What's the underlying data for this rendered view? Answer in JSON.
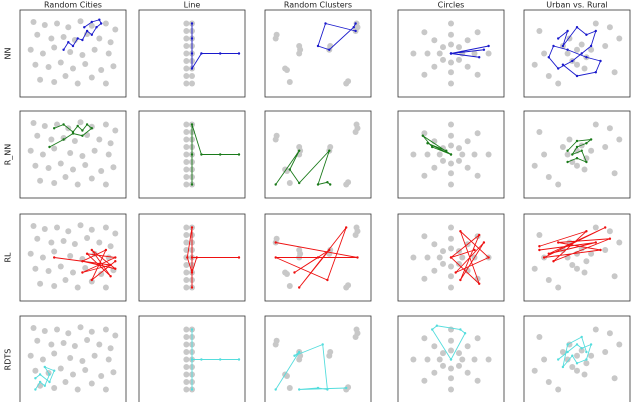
{
  "column_titles": [
    "Random Cities",
    "Line",
    "Random Clusters",
    "Circles",
    "Urban vs. Rural"
  ],
  "rows": [
    {
      "label": "NN",
      "color": "#1a1acc"
    },
    {
      "label": "R_NN",
      "color": "#1a7a1a"
    },
    {
      "label": "RL",
      "color": "#ee1111"
    },
    {
      "label": "RDTS",
      "color": "#55dddd"
    }
  ],
  "xlim": [
    0,
    1
  ],
  "ylim": [
    0,
    1
  ],
  "cities": [
    {
      "x": [
        0.08,
        0.2,
        0.33,
        0.45,
        0.58,
        0.7,
        0.85,
        0.95,
        0.12,
        0.27,
        0.4,
        0.52,
        0.65,
        0.78,
        0.9,
        0.05,
        0.18,
        0.3,
        0.47,
        0.6,
        0.73,
        0.88,
        0.1,
        0.24,
        0.37,
        0.5,
        0.63,
        0.8,
        0.93,
        0.15,
        0.3,
        0.55,
        0.7,
        0.85,
        0.42
      ],
      "y": [
        0.92,
        0.88,
        0.9,
        0.85,
        0.93,
        0.87,
        0.9,
        0.82,
        0.75,
        0.7,
        0.72,
        0.68,
        0.76,
        0.7,
        0.65,
        0.55,
        0.5,
        0.58,
        0.52,
        0.48,
        0.55,
        0.5,
        0.35,
        0.32,
        0.38,
        0.3,
        0.36,
        0.28,
        0.33,
        0.15,
        0.12,
        0.1,
        0.18,
        0.1,
        0.2
      ]
    },
    {
      "x": [
        0.44,
        0.44,
        0.44,
        0.44,
        0.44,
        0.44,
        0.44,
        0.44,
        0.44,
        0.5,
        0.5,
        0.5,
        0.5,
        0.5,
        0.5,
        0.5,
        0.5,
        0.5
      ],
      "y": [
        0.1,
        0.2,
        0.3,
        0.4,
        0.5,
        0.6,
        0.7,
        0.8,
        0.9,
        0.1,
        0.2,
        0.3,
        0.4,
        0.5,
        0.6,
        0.7,
        0.8,
        0.9
      ]
    },
    {
      "x": [
        0.05,
        0.06,
        0.3,
        0.31,
        0.3,
        0.62,
        0.63,
        0.9,
        0.92,
        0.91,
        0.2,
        0.8,
        0.82,
        0.15,
        0.17
      ],
      "y": [
        0.7,
        0.75,
        0.5,
        0.55,
        0.6,
        0.55,
        0.6,
        0.8,
        0.85,
        0.9,
        0.12,
        0.1,
        0.13,
        0.3,
        0.28
      ]
    },
    {
      "x": [
        0.62,
        0.585,
        0.5,
        0.415,
        0.38,
        0.415,
        0.5,
        0.585,
        0.75,
        0.677,
        0.5,
        0.323,
        0.25,
        0.323,
        0.5,
        0.677,
        0.9,
        0.783,
        0.5,
        0.217,
        0.1,
        0.217,
        0.5,
        0.783
      ],
      "y": [
        0.5,
        0.585,
        0.62,
        0.585,
        0.5,
        0.415,
        0.38,
        0.415,
        0.5,
        0.677,
        0.75,
        0.677,
        0.5,
        0.323,
        0.25,
        0.323,
        0.5,
        0.783,
        0.9,
        0.783,
        0.5,
        0.217,
        0.1,
        0.217
      ]
    },
    {
      "x": [
        0.4,
        0.5,
        0.6,
        0.45,
        0.55,
        0.35,
        0.65,
        0.5,
        0.42,
        0.58,
        0.1,
        0.2,
        0.85,
        0.9,
        0.15,
        0.8,
        0.3,
        0.7,
        0.05,
        0.95
      ],
      "y": [
        0.5,
        0.55,
        0.45,
        0.4,
        0.62,
        0.6,
        0.55,
        0.35,
        0.7,
        0.3,
        0.8,
        0.2,
        0.85,
        0.25,
        0.5,
        0.6,
        0.1,
        0.9,
        0.35,
        0.7
      ]
    }
  ],
  "chart_data": [
    {
      "type": "route",
      "x": [
        0.4,
        0.45,
        0.5,
        0.55,
        0.6,
        0.65,
        0.7,
        0.75,
        0.8,
        0.78,
        0.7,
        0.62
      ],
      "y": [
        0.55,
        0.65,
        0.6,
        0.7,
        0.68,
        0.8,
        0.75,
        0.85,
        0.9,
        0.95,
        0.92,
        0.85
      ]
    },
    {
      "type": "route",
      "x": [
        0.5,
        0.5,
        0.5,
        0.5,
        0.6,
        0.8,
        1.0
      ],
      "y": [
        0.9,
        0.7,
        0.5,
        0.3,
        0.5,
        0.5,
        0.5
      ]
    },
    {
      "type": "route",
      "x": [
        0.9,
        0.88,
        0.62,
        0.5,
        0.58,
        0.9
      ],
      "y": [
        0.9,
        0.85,
        0.55,
        0.6,
        0.9,
        0.8
      ]
    },
    {
      "type": "route",
      "x": [
        0.5,
        0.9,
        0.5,
        0.8,
        0.5,
        0.85
      ],
      "y": [
        0.5,
        0.6,
        0.5,
        0.45,
        0.5,
        0.55
      ]
    },
    {
      "type": "route",
      "x": [
        0.3,
        0.4,
        0.35,
        0.5,
        0.6,
        0.7,
        0.65,
        0.55,
        0.45,
        0.3,
        0.2,
        0.25,
        0.4,
        0.6,
        0.75,
        0.7,
        0.5,
        0.35
      ],
      "y": [
        0.7,
        0.8,
        0.6,
        0.85,
        0.75,
        0.8,
        0.6,
        0.5,
        0.4,
        0.3,
        0.45,
        0.6,
        0.55,
        0.45,
        0.4,
        0.25,
        0.2,
        0.35
      ]
    },
    {
      "type": "route",
      "x": [
        0.3,
        0.4,
        0.5,
        0.55,
        0.6,
        0.65,
        0.7,
        0.6,
        0.5,
        0.4,
        0.25
      ],
      "y": [
        0.85,
        0.9,
        0.8,
        0.88,
        0.82,
        0.9,
        0.85,
        0.75,
        0.78,
        0.7,
        0.6
      ]
    },
    {
      "type": "route",
      "x": [
        0.5,
        0.5,
        0.5,
        0.6,
        0.8,
        1.0
      ],
      "y": [
        0.1,
        0.5,
        0.9,
        0.5,
        0.5,
        0.5
      ]
    },
    {
      "type": "route",
      "x": [
        0.05,
        0.3,
        0.2,
        0.3,
        0.62,
        0.5,
        0.6,
        0.63
      ],
      "y": [
        0.1,
        0.55,
        0.3,
        0.12,
        0.55,
        0.1,
        0.13,
        0.1
      ]
    },
    {
      "type": "route",
      "x": [
        0.5,
        0.2,
        0.3,
        0.5,
        0.25,
        0.45
      ],
      "y": [
        0.5,
        0.75,
        0.6,
        0.5,
        0.65,
        0.55
      ]
    },
    {
      "type": "route",
      "x": [
        0.4,
        0.5,
        0.6,
        0.55,
        0.45,
        0.5,
        0.6,
        0.65,
        0.5,
        0.4
      ],
      "y": [
        0.4,
        0.45,
        0.4,
        0.55,
        0.5,
        0.6,
        0.65,
        0.7,
        0.68,
        0.55
      ]
    },
    {
      "type": "route",
      "x": [
        0.3,
        0.9,
        0.6,
        0.95,
        0.65,
        0.9,
        0.7,
        0.95,
        0.6,
        0.85,
        0.7,
        0.95
      ],
      "y": [
        0.5,
        0.4,
        0.3,
        0.5,
        0.55,
        0.25,
        0.6,
        0.35,
        0.45,
        0.6,
        0.2,
        0.45
      ]
    },
    {
      "type": "route",
      "x": [
        0.5,
        0.5,
        0.45,
        0.5,
        0.55,
        1.0,
        0.5
      ],
      "y": [
        0.1,
        0.9,
        0.5,
        0.3,
        0.5,
        0.5,
        0.5
      ]
    },
    {
      "type": "route",
      "x": [
        0.05,
        0.92,
        0.05,
        0.6,
        0.8,
        0.3,
        0.62,
        0.25,
        0.5
      ],
      "y": [
        0.7,
        0.5,
        0.5,
        0.2,
        0.9,
        0.1,
        0.6,
        0.3,
        0.5
      ]
    },
    {
      "type": "route",
      "x": [
        0.5,
        0.8,
        0.6,
        0.85,
        0.55,
        0.9,
        0.6,
        0.8,
        0.5,
        0.75
      ],
      "y": [
        0.5,
        0.8,
        0.2,
        0.7,
        0.3,
        0.5,
        0.85,
        0.15,
        0.5,
        0.6
      ]
    },
    {
      "type": "route",
      "x": [
        0.1,
        0.7,
        0.2,
        0.8,
        0.15,
        0.75,
        0.3,
        0.85,
        0.25,
        0.6,
        0.1
      ],
      "y": [
        0.6,
        0.7,
        0.55,
        0.9,
        0.5,
        0.6,
        0.7,
        0.75,
        0.45,
        0.85,
        0.65
      ]
    },
    {
      "type": "route",
      "x": [
        0.1,
        0.15,
        0.2,
        0.25,
        0.2,
        0.3,
        0.25,
        0.15,
        0.1
      ],
      "y": [
        0.1,
        0.2,
        0.15,
        0.3,
        0.4,
        0.35,
        0.2,
        0.3,
        0.25
      ]
    },
    {
      "type": "route",
      "x": [
        0.5,
        0.5,
        0.5,
        0.6,
        0.8,
        1.0
      ],
      "y": [
        0.1,
        0.9,
        0.5,
        0.5,
        0.5,
        0.5
      ]
    },
    {
      "type": "route",
      "x": [
        0.05,
        0.3,
        0.25,
        0.55,
        0.6,
        0.5,
        0.3,
        0.8
      ],
      "y": [
        0.1,
        0.6,
        0.55,
        0.7,
        0.1,
        0.12,
        0.1,
        0.12
      ]
    },
    {
      "type": "route",
      "x": [
        0.5,
        0.3,
        0.35,
        0.6,
        0.65,
        0.5
      ],
      "y": [
        0.5,
        0.9,
        0.95,
        0.9,
        0.85,
        0.5
      ]
    },
    {
      "type": "route",
      "x": [
        0.3,
        0.4,
        0.5,
        0.55,
        0.65,
        0.6,
        0.5,
        0.45,
        0.35,
        0.4,
        0.55,
        0.6
      ],
      "y": [
        0.5,
        0.6,
        0.7,
        0.65,
        0.7,
        0.5,
        0.45,
        0.55,
        0.4,
        0.7,
        0.8,
        0.6
      ]
    }
  ]
}
